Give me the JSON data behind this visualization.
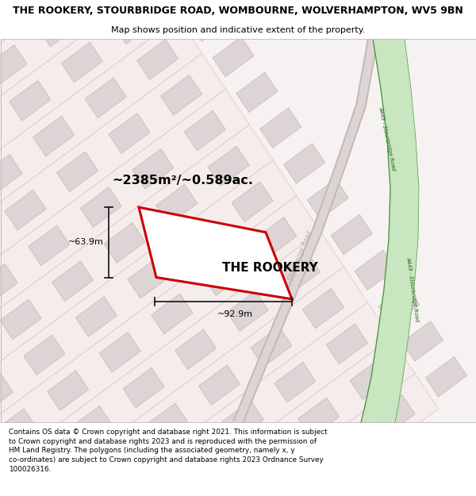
{
  "title_line1": "THE ROOKERY, STOURBRIDGE ROAD, WOMBOURNE, WOLVERHAMPTON, WV5 9BN",
  "title_line2": "Map shows position and indicative extent of the property.",
  "area_label": "~2385m²/~0.589ac.",
  "property_name": "THE ROOKERY",
  "dim_width": "~92.9m",
  "dim_height": "~63.9m",
  "footer_text": "Contains OS data © Crown copyright and database right 2021. This information is subject\nto Crown copyright and database rights 2023 and is reproduced with the permission of\nHM Land Registry. The polygons (including the associated geometry, namely x, y\nco-ordinates) are subject to Crown copyright and database rights 2023 Ordnance Survey\n100026316.",
  "bg_color": "#ffffff",
  "map_bg": "#f7f2f2",
  "strip_fill": "#f5ecec",
  "strip_border": "#e8bfbf",
  "block_fill": "#ddd5d5",
  "block_border": "#c8a8a8",
  "prop_fill": "#ffffff",
  "prop_stroke": "#cc0000",
  "road_green_fill": "#c8e6c0",
  "road_green_edge": "#4e9944",
  "road_label_color": "#b8a8a8",
  "road_a449_label": "#2d7a25",
  "dim_color": "#111111",
  "title_fontsize": 9.0,
  "subtitle_fontsize": 8.0,
  "area_fontsize": 11.5,
  "propname_fontsize": 11.0,
  "dim_fontsize": 8.0,
  "footer_fontsize": 6.4
}
